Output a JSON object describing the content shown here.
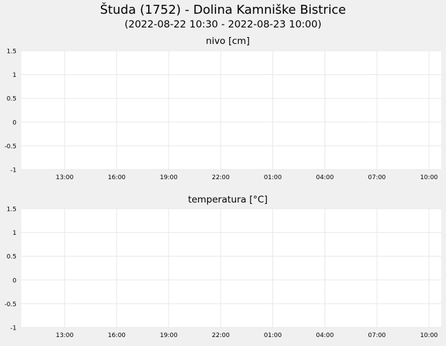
{
  "title": "Študa (1752) - Dolina Kamniške Bistrice",
  "subtitle": "(2022-08-22 10:30 - 2022-08-23 10:00)",
  "colors": {
    "background": "#f0f0f0",
    "plot_background": "#ffffff",
    "grid": "#e8e8e8",
    "text": "#000000"
  },
  "chart_data": [
    {
      "type": "line",
      "title": "nivo [cm]",
      "xlabel": "",
      "ylabel": "",
      "x_range": [
        "2022-08-22 10:30",
        "2022-08-23 10:00"
      ],
      "x_ticks": [
        "2022-08-22 13:00",
        "2022-08-22 16:00",
        "2022-08-22 19:00",
        "2022-08-22 22:00",
        "2022-08-23 01:00",
        "2022-08-23 04:00",
        "2022-08-23 07:00",
        "2022-08-23 10:00"
      ],
      "x_tick_labels": [
        "13:00",
        "16:00",
        "19:00",
        "22:00",
        "01:00",
        "04:00",
        "07:00",
        "10:00"
      ],
      "ylim": [
        -1,
        1.5
      ],
      "y_ticks": [
        -1,
        -0.5,
        0,
        0.5,
        1,
        1.5
      ],
      "y_tick_labels": [
        "-1",
        "-0.5",
        "0",
        "0.5",
        "1",
        "1.5"
      ],
      "grid": true,
      "series": []
    },
    {
      "type": "line",
      "title": "temperatura [°C]",
      "xlabel": "",
      "ylabel": "",
      "x_range": [
        "2022-08-22 10:30",
        "2022-08-23 10:00"
      ],
      "x_ticks": [
        "2022-08-22 13:00",
        "2022-08-22 16:00",
        "2022-08-22 19:00",
        "2022-08-22 22:00",
        "2022-08-23 01:00",
        "2022-08-23 04:00",
        "2022-08-23 07:00",
        "2022-08-23 10:00"
      ],
      "x_tick_labels": [
        "13:00",
        "16:00",
        "19:00",
        "22:00",
        "01:00",
        "04:00",
        "07:00",
        "10:00"
      ],
      "ylim": [
        -1,
        1.5
      ],
      "y_ticks": [
        -1,
        -0.5,
        0,
        0.5,
        1,
        1.5
      ],
      "y_tick_labels": [
        "-1",
        "-0.5",
        "0",
        "0.5",
        "1",
        "1.5"
      ],
      "grid": true,
      "series": []
    }
  ]
}
